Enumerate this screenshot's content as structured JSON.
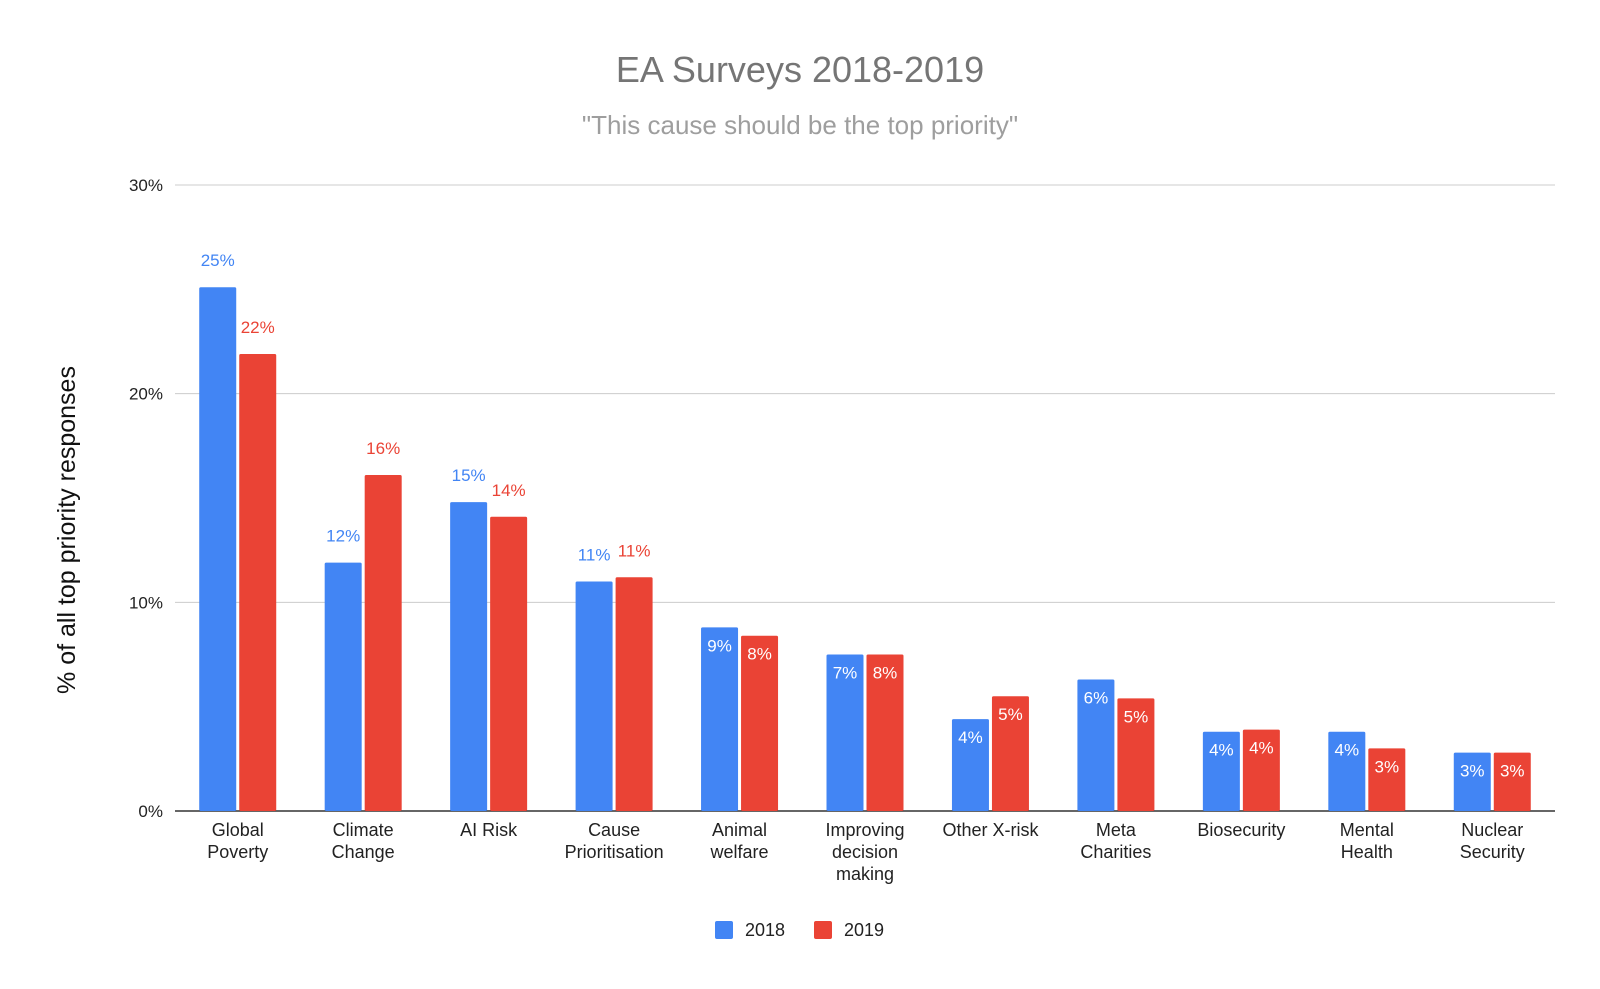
{
  "chart_data": {
    "type": "bar",
    "title": "EA Surveys 2018-2019",
    "subtitle": "\"This cause should be the top priority\"",
    "ylabel": "% of all top priority responses",
    "xlabel": "",
    "ylim": [
      0,
      30
    ],
    "yticks": [
      0,
      10,
      20,
      30
    ],
    "ytick_labels": [
      "0%",
      "10%",
      "20%",
      "30%"
    ],
    "grid": true,
    "legend_position": "bottom",
    "categories": [
      [
        "Global",
        "Poverty"
      ],
      [
        "Climate",
        "Change"
      ],
      [
        "AI Risk"
      ],
      [
        "Cause",
        "Prioritisation"
      ],
      [
        "Animal",
        "welfare"
      ],
      [
        "Improving",
        "decision",
        "making"
      ],
      [
        "Other X-risk"
      ],
      [
        "Meta",
        "Charities"
      ],
      [
        "Biosecurity"
      ],
      [
        "Mental",
        "Health"
      ],
      [
        "Nuclear",
        "Security"
      ]
    ],
    "series": [
      {
        "name": "2018",
        "color": "#4285f4",
        "values": [
          25.1,
          11.9,
          14.8,
          11.0,
          8.8,
          7.5,
          4.4,
          6.3,
          3.8,
          3.8,
          2.8
        ],
        "labels": [
          "25%",
          "12%",
          "15%",
          "11%",
          "9%",
          "7%",
          "4%",
          "6%",
          "4%",
          "4%",
          "3%"
        ]
      },
      {
        "name": "2019",
        "color": "#ea4335",
        "values": [
          21.9,
          16.1,
          14.1,
          11.2,
          8.4,
          7.5,
          5.5,
          5.4,
          3.9,
          3.0,
          2.8
        ],
        "labels": [
          "22%",
          "16%",
          "14%",
          "11%",
          "8%",
          "8%",
          "5%",
          "5%",
          "4%",
          "3%",
          "3%"
        ]
      }
    ]
  }
}
